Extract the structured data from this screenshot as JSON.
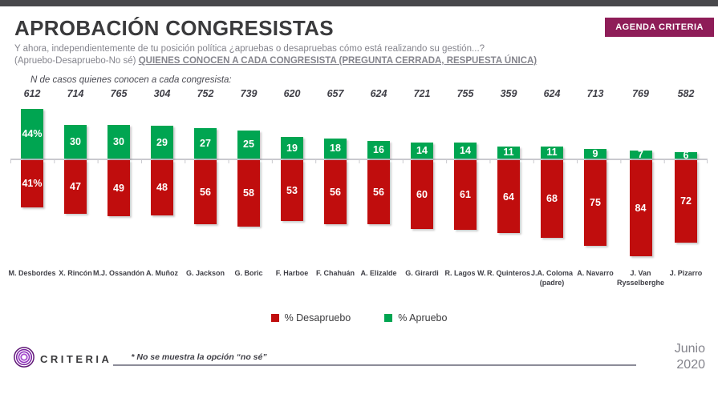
{
  "header": {
    "title": "APROBACIÓN CONGRESISTAS",
    "subtitle_line1": "Y ahora, independientemente de tu posición política ¿apruebas o desapruebas cómo está realizando su gestión...?",
    "subtitle_line2_prefix": "(Apruebo-Desapruebo-No sé) ",
    "subtitle_line2_emph": "QUIENES CONOCEN A CADA CONGRESISTA (PREGUNTA CERRADA, RESPUESTA ÚNICA)",
    "badge": "AGENDA CRITERIA",
    "badge_color": "#8E1D58"
  },
  "chart_data": {
    "type": "bar",
    "orientation": "diverging-vertical",
    "title": "APROBACIÓN CONGRESISTAS",
    "n_label": "N de casos quienes conocen a cada congresista:",
    "n_values": [
      "612",
      "714",
      "765",
      "304",
      "752",
      "739",
      "620",
      "657",
      "624",
      "721",
      "755",
      "359",
      "624",
      "713",
      "769",
      "582"
    ],
    "categories": [
      "M. Desbordes",
      "X. Rincón",
      "M.J. Ossandón",
      "A. Muñoz",
      "G. Jackson",
      "G. Boric",
      "F. Harboe",
      "F. Chahuán",
      "A. Elizalde",
      "G. Girardi",
      "R. Lagos W.",
      "R. Quinteros",
      "J.A. Coloma (padre)",
      "A. Navarro",
      "J. Van Rysselberghe",
      "J. Pizarro"
    ],
    "series": [
      {
        "name": "% Desapruebo",
        "direction": "down",
        "color": "#C00D0D",
        "values": [
          41,
          47,
          49,
          48,
          56,
          58,
          53,
          56,
          56,
          60,
          61,
          64,
          68,
          75,
          84,
          72
        ],
        "labels": [
          "41%",
          "47",
          "49",
          "48",
          "56",
          "58",
          "53",
          "56",
          "56",
          "60",
          "61",
          "64",
          "68",
          "75",
          "84",
          "72"
        ]
      },
      {
        "name": "% Apruebo",
        "direction": "up",
        "color": "#00A551",
        "values": [
          44,
          30,
          30,
          29,
          27,
          25,
          19,
          18,
          16,
          14,
          14,
          11,
          11,
          9,
          7,
          6
        ],
        "labels": [
          "44%",
          "30",
          "30",
          "29",
          "27",
          "25",
          "19",
          "18",
          "16",
          "14",
          "14",
          "11",
          "11",
          "9",
          "7",
          "6"
        ]
      }
    ],
    "unit": "percent",
    "grid": false,
    "legend_position": "bottom"
  },
  "footer": {
    "logo_text": "CRITERIA",
    "note": "* No se muestra la opción “no sé”",
    "date_line1": "Junio",
    "date_line2": "2020"
  }
}
